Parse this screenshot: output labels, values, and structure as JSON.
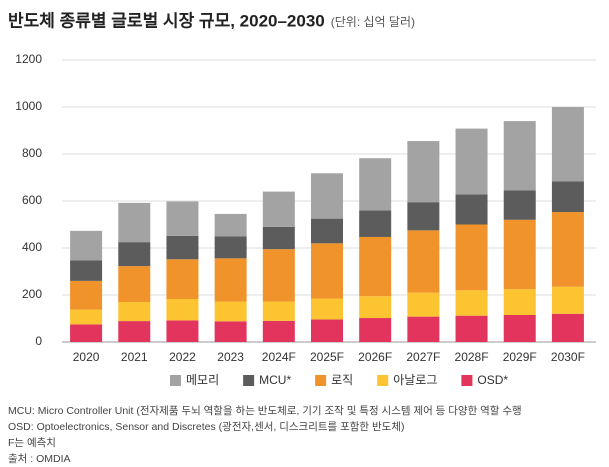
{
  "chart_data": {
    "type": "stacked_bar",
    "title": "반도체 종류별 글로벌 시장 규모, 2020–2030",
    "subtitle": "(단위: 십억 달러)",
    "categories": [
      "2020",
      "2021",
      "2022",
      "2023",
      "2024F",
      "2025F",
      "2026F",
      "2027F",
      "2028F",
      "2029F",
      "2030F"
    ],
    "series": [
      {
        "name": "OSD*",
        "color": "#e2345c",
        "values": [
          75,
          89,
          92,
          88,
          90,
          96,
          102,
          108,
          112,
          115,
          120
        ]
      },
      {
        "name": "아날로그",
        "color": "#fcc431",
        "values": [
          63,
          81,
          91,
          84,
          82,
          89,
          93,
          102,
          108,
          110,
          115
        ]
      },
      {
        "name": "로직",
        "color": "#f0932b",
        "values": [
          122,
          153,
          169,
          184,
          223,
          235,
          252,
          265,
          280,
          295,
          318
        ]
      },
      {
        "name": "MCU*",
        "color": "#5c5c5c",
        "values": [
          88,
          102,
          100,
          94,
          95,
          105,
          113,
          120,
          128,
          125,
          130
        ]
      },
      {
        "name": "메모리",
        "color": "#a3a3a3",
        "values": [
          125,
          167,
          146,
          95,
          150,
          193,
          222,
          260,
          280,
          295,
          317
        ]
      }
    ],
    "legend_order": [
      4,
      3,
      2,
      1,
      0
    ],
    "ylim": [
      0,
      1200
    ],
    "yticks": [
      0,
      200,
      400,
      600,
      800,
      1000,
      1200
    ],
    "grid": true,
    "notes": [
      "MCU: Micro Controller Unit (전자제품 두뇌 역할을 하는 반도체로, 기기 조작 및 특정 시스템 제어 등 다양한 역할 수행",
      "OSD: Optoelectronics, Sensor and Discretes (광전자,센서, 디스크리트를 포함한 반도체)",
      "F는 예측치",
      "출처 : OMDIA"
    ]
  }
}
